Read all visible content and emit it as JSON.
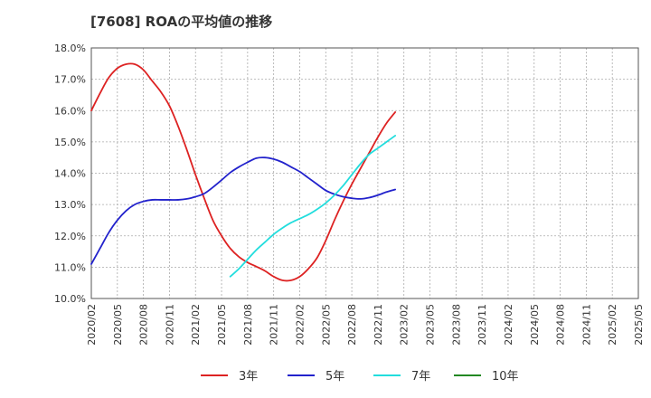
{
  "chart_data": {
    "type": "line",
    "title": "[7608]  ROAの平均値の推移",
    "xlabel": "",
    "ylabel": "",
    "ylim": [
      10.0,
      18.0
    ],
    "y_ticks": [
      "10.0%",
      "11.0%",
      "12.0%",
      "13.0%",
      "14.0%",
      "15.0%",
      "16.0%",
      "17.0%",
      "18.0%"
    ],
    "x_ticks": [
      "2020/02",
      "2020/05",
      "2020/08",
      "2020/11",
      "2021/02",
      "2021/05",
      "2021/08",
      "2021/11",
      "2022/02",
      "2022/05",
      "2022/08",
      "2022/11",
      "2023/02",
      "2023/05",
      "2023/08",
      "2023/11",
      "2024/02",
      "2024/05",
      "2024/08",
      "2024/11",
      "2025/02",
      "2025/05"
    ],
    "grid": true,
    "legend_position": "bottom",
    "series": [
      {
        "name": "3年",
        "color": "#dd2222",
        "start_index": 0,
        "values": [
          16.0,
          16.55,
          17.05,
          17.35,
          17.48,
          17.48,
          17.3,
          16.95,
          16.6,
          16.15,
          15.5,
          14.75,
          13.95,
          13.2,
          12.5,
          12.0,
          11.6,
          11.33,
          11.15,
          11.02,
          10.88,
          10.7,
          10.58,
          10.58,
          10.7,
          10.95,
          11.3,
          11.85,
          12.5,
          13.1,
          13.65,
          14.15,
          14.65,
          15.15,
          15.6,
          15.95
        ]
      },
      {
        "name": "5年",
        "color": "#2222cc",
        "start_index": 0,
        "values": [
          11.1,
          11.6,
          12.1,
          12.5,
          12.8,
          13.0,
          13.1,
          13.15,
          13.15,
          13.15,
          13.15,
          13.18,
          13.25,
          13.35,
          13.55,
          13.78,
          14.02,
          14.2,
          14.35,
          14.48,
          14.5,
          14.45,
          14.35,
          14.2,
          14.05,
          13.85,
          13.65,
          13.45,
          13.33,
          13.25,
          13.2,
          13.18,
          13.22,
          13.3,
          13.4,
          13.48
        ]
      },
      {
        "name": "7年",
        "color": "#22dddd",
        "start_index": 16,
        "values": [
          10.7,
          10.95,
          11.25,
          11.55,
          11.8,
          12.05,
          12.25,
          12.42,
          12.55,
          12.68,
          12.85,
          13.05,
          13.3,
          13.6,
          13.95,
          14.3,
          14.6,
          14.8,
          15.0,
          15.2
        ]
      },
      {
        "name": "10年",
        "color": "#228822",
        "start_index": 0,
        "values": []
      }
    ]
  }
}
